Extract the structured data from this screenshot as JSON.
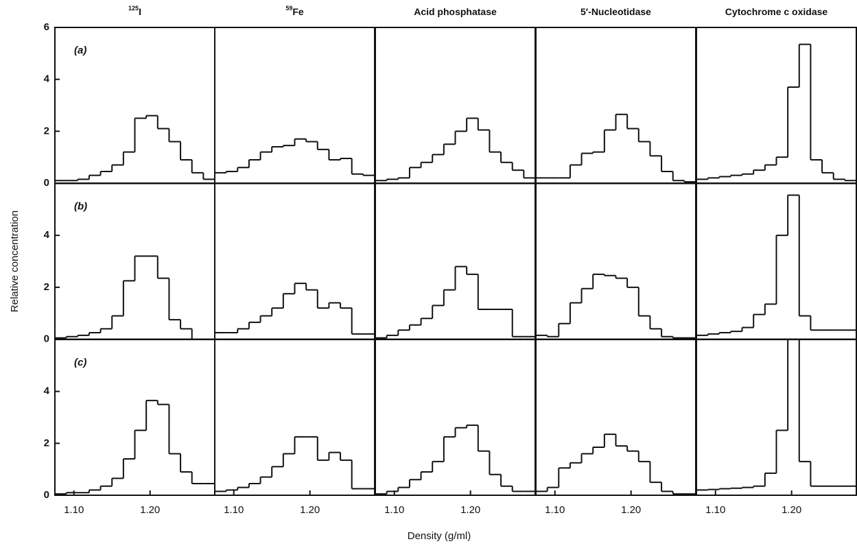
{
  "figure": {
    "ylabel": "Relative concentration",
    "xlabel": "Density (g/ml)"
  },
  "chart_data": [
    {
      "type": "histogram",
      "title_sup": "125",
      "title": "I",
      "label": "(a)",
      "bins": [
        1.075,
        1.09,
        1.105,
        1.12,
        1.135,
        1.15,
        1.165,
        1.18,
        1.195,
        1.21,
        1.225,
        1.24,
        1.255,
        1.27,
        1.285
      ],
      "counts": [
        0.1,
        0.1,
        0.15,
        0.3,
        0.45,
        0.7,
        1.2,
        2.5,
        2.6,
        2.1,
        1.6,
        0.9,
        0.4,
        0.15
      ],
      "xlim": [
        1.075,
        1.285
      ],
      "ylim": [
        0,
        6
      ],
      "yticks": [
        0,
        2,
        4,
        6
      ]
    },
    {
      "type": "histogram",
      "title_sup": "59",
      "title": "Fe",
      "bins": [
        1.075,
        1.09,
        1.105,
        1.12,
        1.135,
        1.15,
        1.165,
        1.18,
        1.195,
        1.21,
        1.225,
        1.24,
        1.255,
        1.27,
        1.285
      ],
      "counts": [
        0.4,
        0.45,
        0.6,
        0.9,
        1.2,
        1.4,
        1.45,
        1.7,
        1.6,
        1.3,
        0.9,
        0.95,
        0.35,
        0.3
      ],
      "xlim": [
        1.075,
        1.285
      ],
      "ylim": [
        0,
        6
      ]
    },
    {
      "type": "histogram",
      "title": "Acid phosphatase",
      "bins": [
        1.075,
        1.09,
        1.105,
        1.12,
        1.135,
        1.15,
        1.165,
        1.18,
        1.195,
        1.21,
        1.225,
        1.24,
        1.255,
        1.27,
        1.285
      ],
      "counts": [
        0.1,
        0.15,
        0.2,
        0.6,
        0.8,
        1.1,
        1.5,
        2.0,
        2.5,
        2.05,
        1.2,
        0.8,
        0.5,
        0.2
      ],
      "xlim": [
        1.075,
        1.285
      ],
      "ylim": [
        0,
        6
      ]
    },
    {
      "type": "histogram",
      "title": "5′-Nucleotidase",
      "bins": [
        1.075,
        1.09,
        1.105,
        1.12,
        1.135,
        1.15,
        1.165,
        1.18,
        1.195,
        1.21,
        1.225,
        1.24,
        1.255,
        1.27,
        1.285
      ],
      "counts": [
        0.2,
        0.2,
        0.2,
        0.7,
        1.15,
        1.2,
        2.05,
        2.65,
        2.1,
        1.6,
        1.05,
        0.45,
        0.1,
        0.05
      ],
      "xlim": [
        1.075,
        1.285
      ],
      "ylim": [
        0,
        6
      ]
    },
    {
      "type": "histogram",
      "title": "Cytochrome c oxidase",
      "bins": [
        1.075,
        1.09,
        1.105,
        1.12,
        1.135,
        1.15,
        1.165,
        1.18,
        1.195,
        1.21,
        1.225,
        1.24,
        1.255,
        1.27,
        1.285
      ],
      "counts": [
        0.15,
        0.2,
        0.25,
        0.3,
        0.35,
        0.5,
        0.7,
        1.0,
        3.7,
        5.35,
        0.9,
        0.4,
        0.15,
        0.1
      ],
      "xlim": [
        1.075,
        1.285
      ],
      "ylim": [
        0,
        6
      ]
    },
    {
      "type": "histogram",
      "label": "(b)",
      "bins": [
        1.075,
        1.09,
        1.105,
        1.12,
        1.135,
        1.15,
        1.165,
        1.18,
        1.195,
        1.21,
        1.225,
        1.24,
        1.255,
        1.27,
        1.285
      ],
      "counts": [
        0.05,
        0.1,
        0.15,
        0.25,
        0.4,
        0.9,
        2.25,
        3.2,
        3.2,
        2.35,
        0.75,
        0.4,
        0,
        0
      ],
      "xlim": [
        1.075,
        1.285
      ],
      "ylim": [
        0,
        6
      ],
      "yticks": [
        0,
        2,
        4
      ]
    },
    {
      "type": "histogram",
      "bins": [
        1.075,
        1.09,
        1.105,
        1.12,
        1.135,
        1.15,
        1.165,
        1.18,
        1.195,
        1.21,
        1.225,
        1.24,
        1.255,
        1.27,
        1.285
      ],
      "counts": [
        0.25,
        0.25,
        0.4,
        0.65,
        0.9,
        1.2,
        1.75,
        2.15,
        1.9,
        1.2,
        1.4,
        1.2,
        0.2,
        0.2
      ],
      "xlim": [
        1.075,
        1.285
      ],
      "ylim": [
        0,
        6
      ]
    },
    {
      "type": "histogram",
      "bins": [
        1.075,
        1.09,
        1.105,
        1.12,
        1.135,
        1.15,
        1.165,
        1.18,
        1.195,
        1.21,
        1.225,
        1.24,
        1.255,
        1.27,
        1.285
      ],
      "counts": [
        0.05,
        0.15,
        0.35,
        0.55,
        0.8,
        1.3,
        1.9,
        2.8,
        2.5,
        1.15,
        1.15,
        1.15,
        0.1,
        0.1
      ],
      "xlim": [
        1.075,
        1.285
      ],
      "ylim": [
        0,
        6
      ]
    },
    {
      "type": "histogram",
      "bins": [
        1.075,
        1.09,
        1.105,
        1.12,
        1.135,
        1.15,
        1.165,
        1.18,
        1.195,
        1.21,
        1.225,
        1.24,
        1.255,
        1.27,
        1.285
      ],
      "counts": [
        0.15,
        0.1,
        0.6,
        1.4,
        1.95,
        2.5,
        2.45,
        2.35,
        2.0,
        0.9,
        0.4,
        0.1,
        0.05,
        0.05
      ],
      "xlim": [
        1.075,
        1.285
      ],
      "ylim": [
        0,
        6
      ]
    },
    {
      "type": "histogram",
      "bins": [
        1.075,
        1.09,
        1.105,
        1.12,
        1.135,
        1.15,
        1.165,
        1.18,
        1.195,
        1.21,
        1.225,
        1.24,
        1.255,
        1.27,
        1.285
      ],
      "counts": [
        0.15,
        0.2,
        0.25,
        0.3,
        0.45,
        0.95,
        1.35,
        4.0,
        5.55,
        0.9,
        0.35,
        0.35,
        0.35,
        0.35
      ],
      "xlim": [
        1.075,
        1.285
      ],
      "ylim": [
        0,
        6
      ]
    },
    {
      "type": "histogram",
      "label": "(c)",
      "bins": [
        1.075,
        1.09,
        1.105,
        1.12,
        1.135,
        1.15,
        1.165,
        1.18,
        1.195,
        1.21,
        1.225,
        1.24,
        1.255,
        1.27,
        1.285
      ],
      "counts": [
        0.05,
        0.1,
        0.1,
        0.2,
        0.35,
        0.65,
        1.4,
        2.5,
        3.65,
        3.5,
        1.6,
        0.9,
        0.45,
        0.45
      ],
      "xlim": [
        1.075,
        1.285
      ],
      "ylim": [
        0,
        6
      ],
      "yticks": [
        0,
        2,
        4
      ],
      "xticks": [
        {
          "value": 1.1,
          "label": "1.10"
        },
        {
          "value": 1.2,
          "label": "1.20"
        }
      ]
    },
    {
      "type": "histogram",
      "bins": [
        1.075,
        1.09,
        1.105,
        1.12,
        1.135,
        1.15,
        1.165,
        1.18,
        1.195,
        1.21,
        1.225,
        1.24,
        1.255,
        1.27,
        1.285
      ],
      "counts": [
        0.15,
        0.2,
        0.3,
        0.45,
        0.7,
        1.1,
        1.6,
        2.25,
        2.25,
        1.35,
        1.65,
        1.35,
        0.25,
        0.25
      ],
      "xlim": [
        1.075,
        1.285
      ],
      "ylim": [
        0,
        6
      ],
      "xticks": [
        {
          "value": 1.1,
          "label": "1.10"
        },
        {
          "value": 1.2,
          "label": "1.20"
        }
      ]
    },
    {
      "type": "histogram",
      "bins": [
        1.075,
        1.09,
        1.105,
        1.12,
        1.135,
        1.15,
        1.165,
        1.18,
        1.195,
        1.21,
        1.225,
        1.24,
        1.255,
        1.27,
        1.285
      ],
      "counts": [
        0.05,
        0.15,
        0.3,
        0.6,
        0.9,
        1.3,
        2.25,
        2.6,
        2.7,
        1.7,
        0.8,
        0.35,
        0.15,
        0.15
      ],
      "xlim": [
        1.075,
        1.285
      ],
      "ylim": [
        0,
        6
      ],
      "xticks": [
        {
          "value": 1.1,
          "label": "1.10"
        },
        {
          "value": 1.2,
          "label": "1.20"
        }
      ]
    },
    {
      "type": "histogram",
      "bins": [
        1.075,
        1.09,
        1.105,
        1.12,
        1.135,
        1.15,
        1.165,
        1.18,
        1.195,
        1.21,
        1.225,
        1.24,
        1.255,
        1.27,
        1.285
      ],
      "counts": [
        0.15,
        0.3,
        1.05,
        1.25,
        1.6,
        1.85,
        2.35,
        1.9,
        1.7,
        1.3,
        0.5,
        0.15,
        0.05,
        0.05
      ],
      "xlim": [
        1.075,
        1.285
      ],
      "ylim": [
        0,
        6
      ],
      "xticks": [
        {
          "value": 1.1,
          "label": "1.10"
        },
        {
          "value": 1.2,
          "label": "1.20"
        }
      ]
    },
    {
      "type": "histogram",
      "bins": [
        1.075,
        1.09,
        1.105,
        1.12,
        1.135,
        1.15,
        1.165,
        1.18,
        1.195,
        1.21,
        1.225,
        1.24,
        1.255,
        1.27,
        1.285
      ],
      "counts": [
        0.2,
        0.22,
        0.25,
        0.27,
        0.3,
        0.35,
        0.85,
        2.5,
        6.0,
        1.3,
        0.35,
        0.35,
        0.35,
        0.35
      ],
      "xlim": [
        1.075,
        1.285
      ],
      "ylim": [
        0,
        6
      ],
      "xticks": [
        {
          "value": 1.1,
          "label": "1.10"
        },
        {
          "value": 1.2,
          "label": "1.20"
        }
      ]
    }
  ]
}
